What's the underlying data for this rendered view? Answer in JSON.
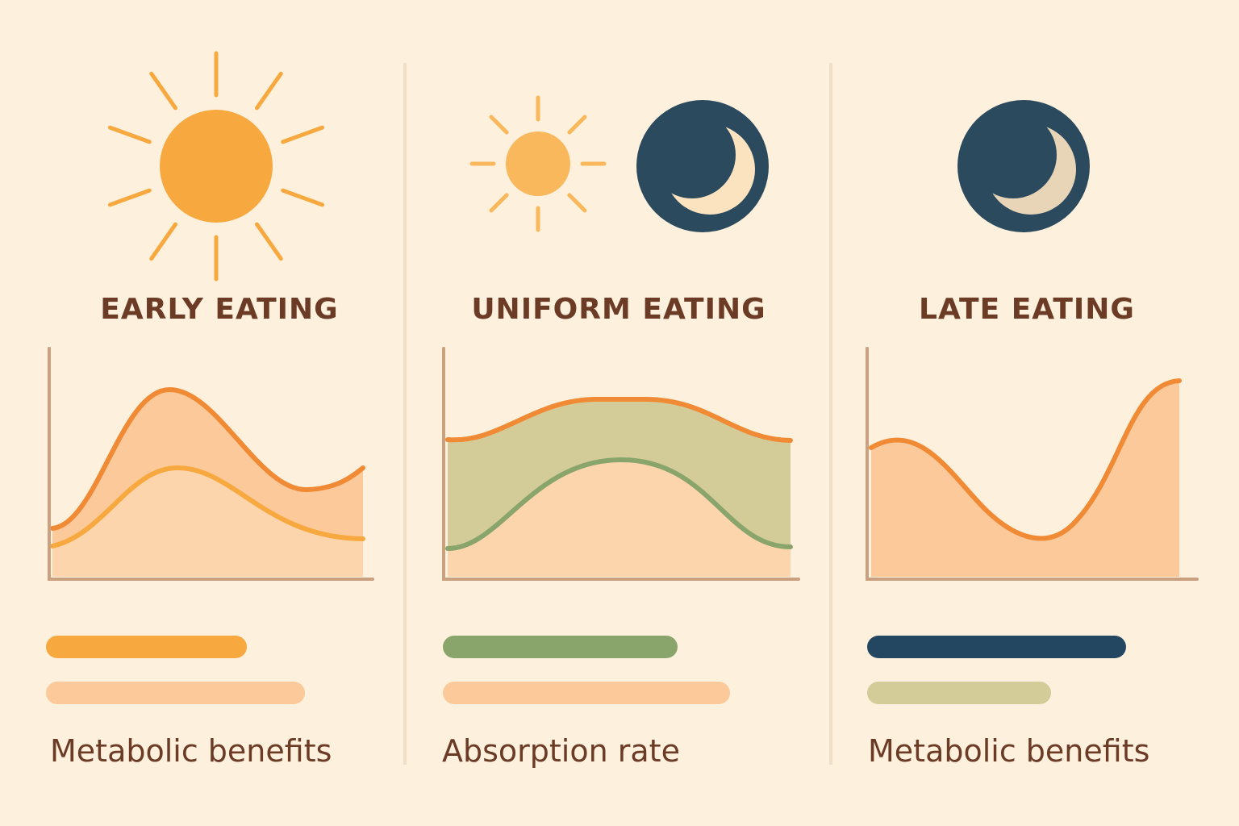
{
  "panels": [
    {
      "title": "EARLY EATING",
      "caption": "Metabolic benefits"
    },
    {
      "title": "UNIFORM EATING",
      "caption": "Absorption rate"
    },
    {
      "title": "LATE EATING",
      "caption": "Metabolic benefits"
    }
  ]
}
